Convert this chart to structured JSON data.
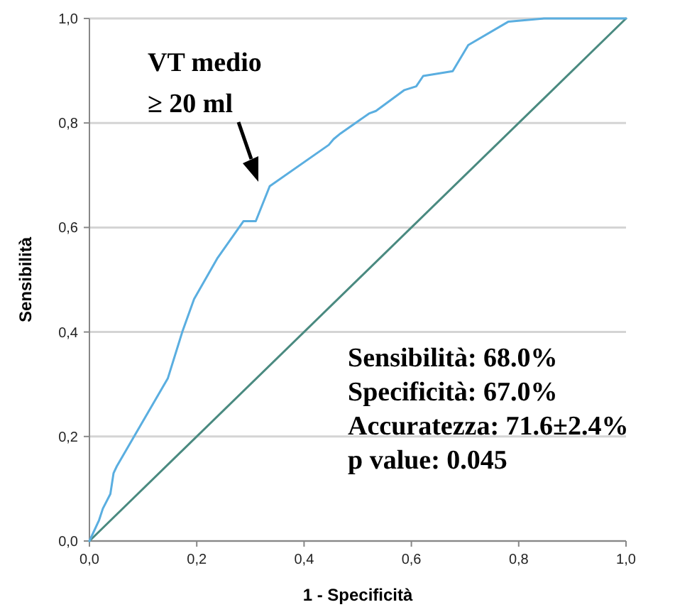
{
  "chart_data": {
    "type": "line",
    "xlabel": "1 - Specificità",
    "ylabel": "Sensibilità",
    "xlim": [
      0,
      1
    ],
    "ylim": [
      0,
      1
    ],
    "xticks": [
      {
        "value": 0,
        "label": "0,0"
      },
      {
        "value": 0.2,
        "label": "0,2"
      },
      {
        "value": 0.4,
        "label": "0,4"
      },
      {
        "value": 0.6,
        "label": "0,6"
      },
      {
        "value": 0.8,
        "label": "0,8"
      },
      {
        "value": 1,
        "label": "1,0"
      }
    ],
    "yticks": [
      {
        "value": 0,
        "label": "0,0"
      },
      {
        "value": 0.2,
        "label": "0,2"
      },
      {
        "value": 0.4,
        "label": "0,4"
      },
      {
        "value": 0.6,
        "label": "0,6"
      },
      {
        "value": 0.8,
        "label": "0,8"
      },
      {
        "value": 1,
        "label": "1,0"
      }
    ],
    "grid": "y",
    "marker": "none",
    "line_style": "solid",
    "series": [
      {
        "color": "#5aaee0",
        "x": [
          0,
          0.018,
          0.025,
          0.039,
          0.045,
          0.051,
          0.146,
          0.173,
          0.195,
          0.239,
          0.287,
          0.31,
          0.336,
          0.446,
          0.455,
          0.468,
          0.521,
          0.534,
          0.587,
          0.609,
          0.622,
          0.677,
          0.706,
          0.781,
          0.847,
          1
        ],
        "values": [
          0,
          0.04,
          0.062,
          0.09,
          0.13,
          0.143,
          0.311,
          0.4,
          0.463,
          0.542,
          0.612,
          0.612,
          0.679,
          0.758,
          0.769,
          0.78,
          0.818,
          0.823,
          0.863,
          0.87,
          0.89,
          0.899,
          0.949,
          0.994,
          1,
          1
        ]
      },
      {
        "color": "#4a8a80",
        "x": [
          0,
          1
        ],
        "values": [
          0,
          1
        ]
      }
    ],
    "annotations": [
      "VT medio\n≥ 20 ml",
      "Sensibilità: 68.0%",
      "Specificità: 67.0%",
      "Accuratezza: 71.6±2.4%",
      "p value: 0.045"
    ]
  }
}
